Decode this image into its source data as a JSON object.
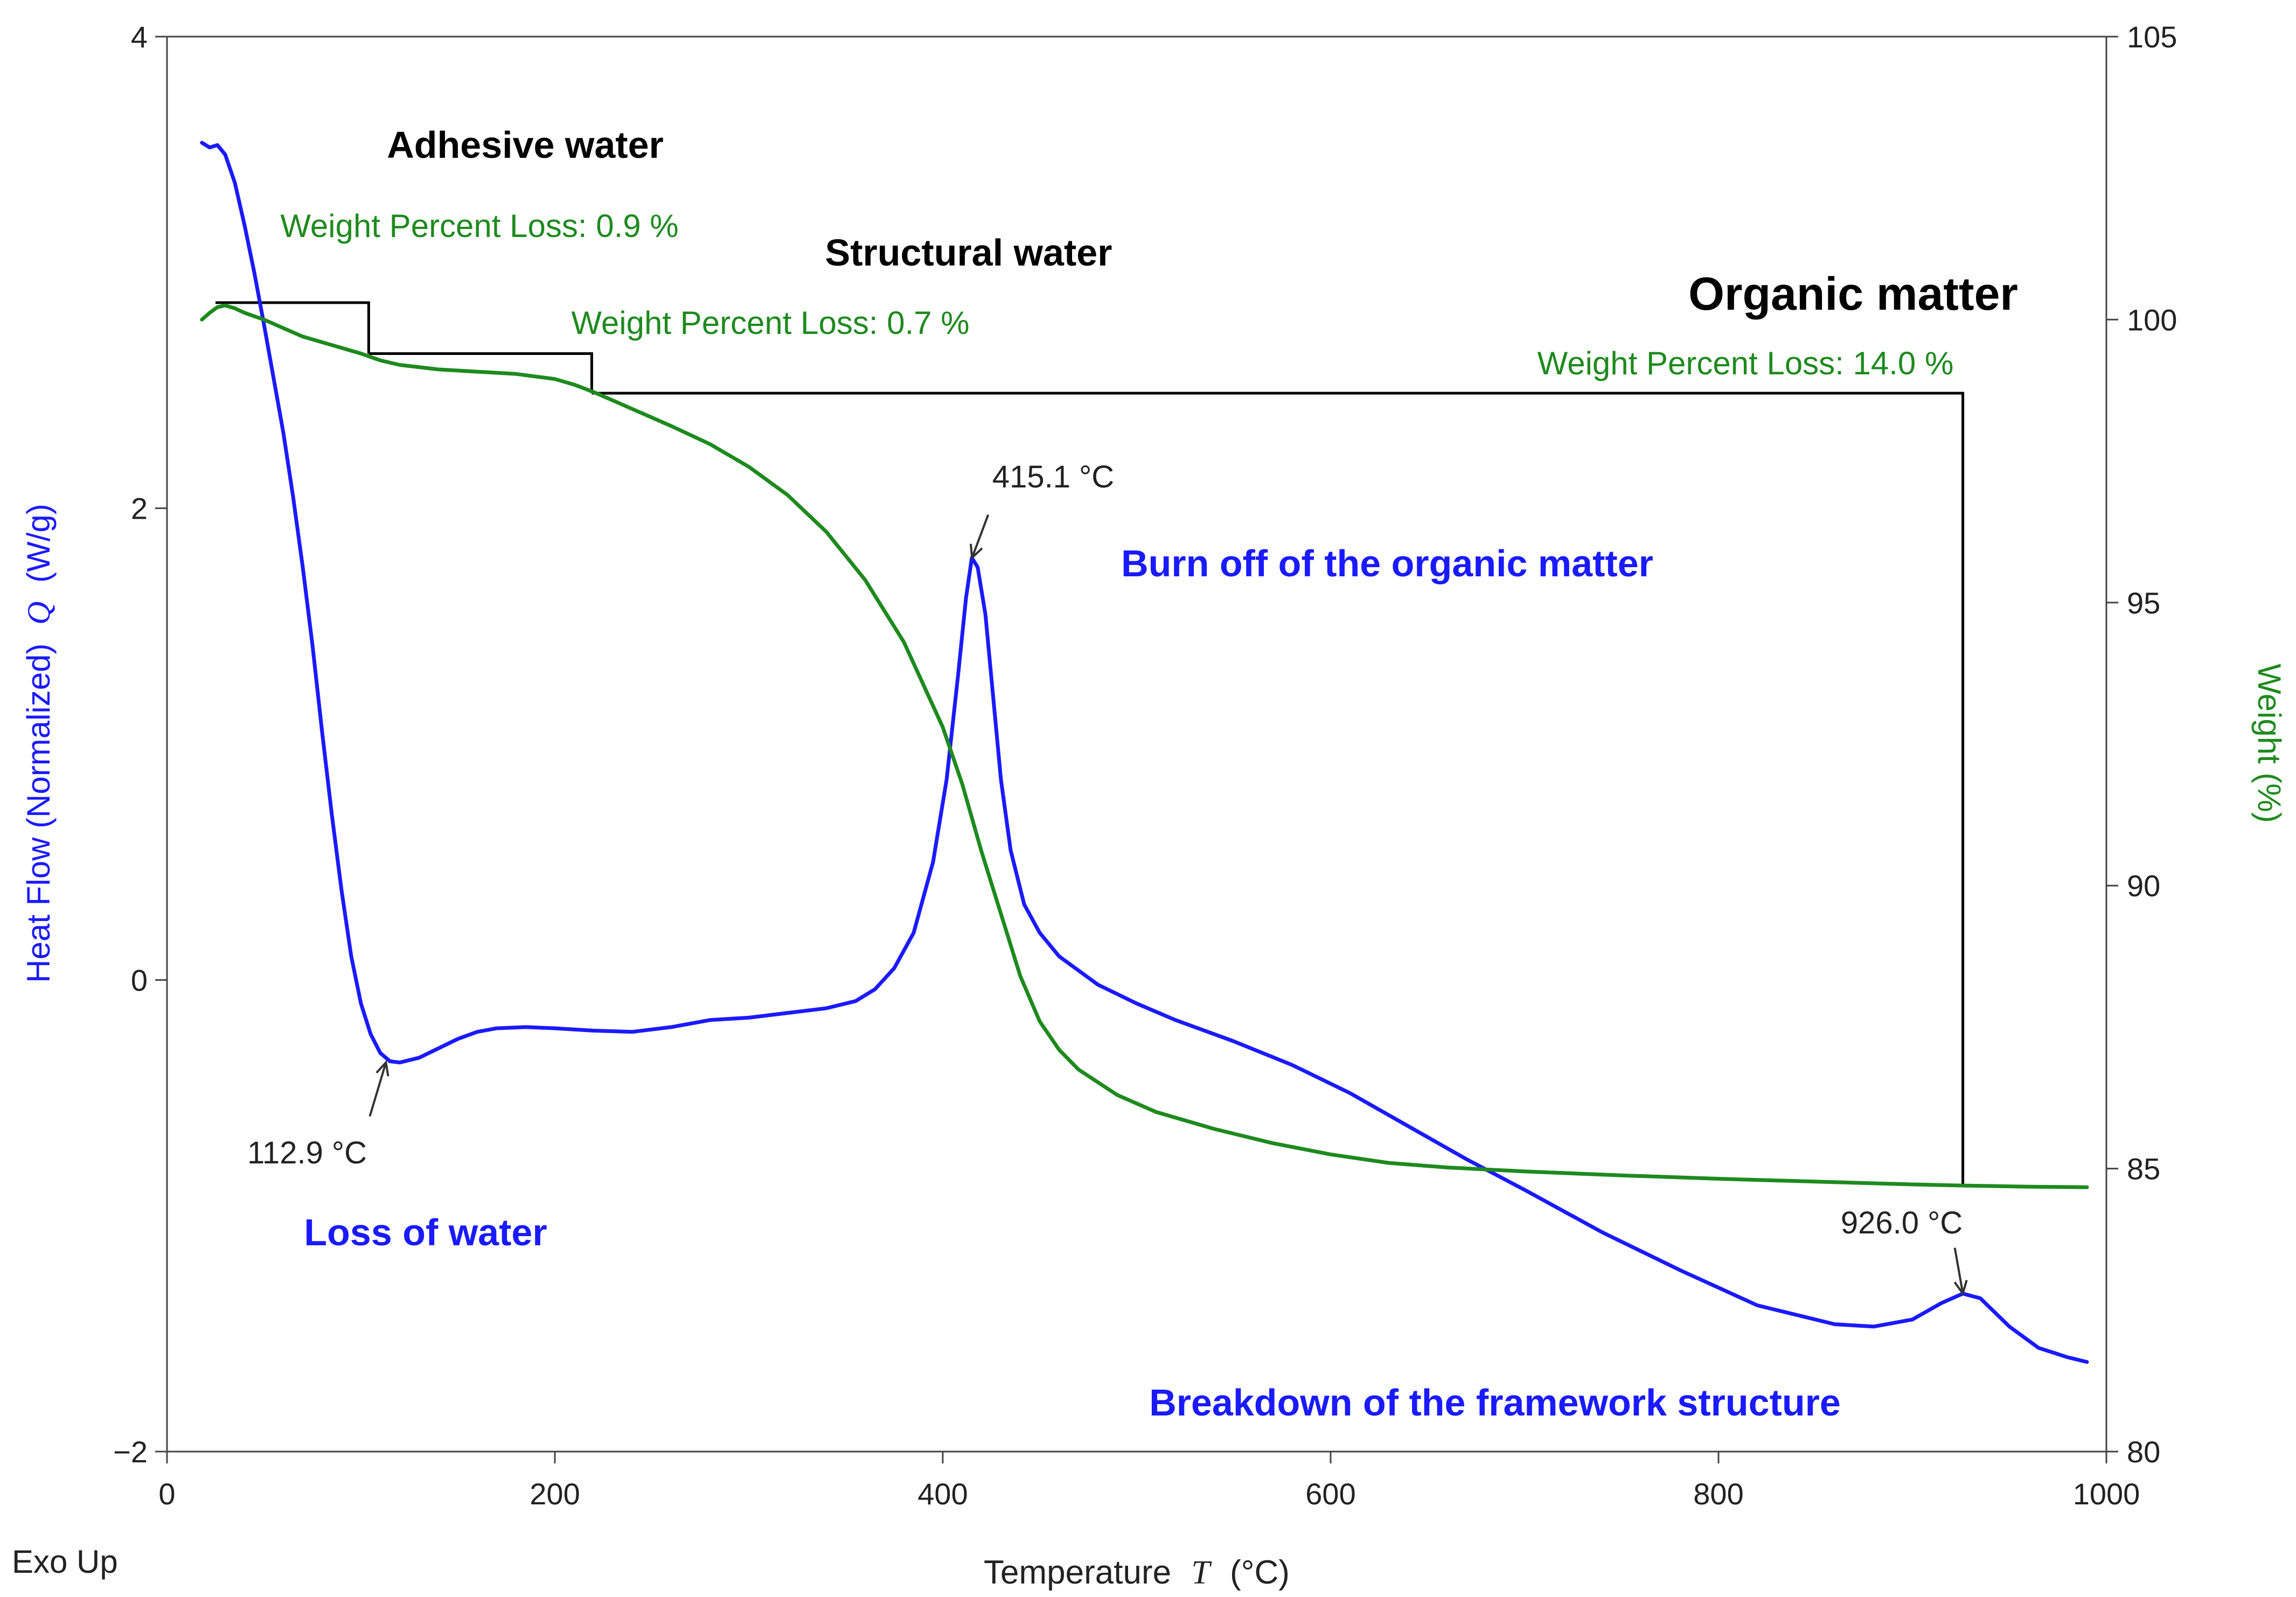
{
  "chart_data": {
    "type": "line",
    "x_axis": {
      "label_prefix": "Temperature",
      "label_symbol": "T",
      "label_unit": "(°C)",
      "range": [
        0,
        1000
      ],
      "ticks": [
        0,
        200,
        400,
        600,
        800,
        1000
      ],
      "tick_labels": [
        "0",
        "200",
        "400",
        "600",
        "800",
        "1000"
      ]
    },
    "y_axis_left": {
      "label_prefix": "Heat Flow (Normalized)",
      "label_symbol": "Q",
      "label_unit": "(W/g)",
      "range": [
        -2,
        4
      ],
      "ticks": [
        -2,
        0,
        2,
        4
      ],
      "tick_labels": [
        "−2",
        "0",
        "2",
        "4"
      ]
    },
    "y_axis_right": {
      "label": "Weight  (%)",
      "range": [
        80,
        105
      ],
      "ticks": [
        80,
        85,
        90,
        95,
        100,
        105
      ],
      "tick_labels": [
        "80",
        "85",
        "90",
        "95",
        "100",
        "105"
      ]
    },
    "corner_label": "Exo Up",
    "series": [
      {
        "name": "Heat Flow",
        "axis": "left",
        "color": "#1a1aff",
        "points": [
          [
            18,
            3.55
          ],
          [
            22,
            3.53
          ],
          [
            26,
            3.54
          ],
          [
            30,
            3.5
          ],
          [
            35,
            3.38
          ],
          [
            40,
            3.2
          ],
          [
            45,
            3.0
          ],
          [
            50,
            2.78
          ],
          [
            55,
            2.55
          ],
          [
            60,
            2.32
          ],
          [
            65,
            2.05
          ],
          [
            70,
            1.75
          ],
          [
            75,
            1.42
          ],
          [
            80,
            1.05
          ],
          [
            85,
            0.7
          ],
          [
            90,
            0.38
          ],
          [
            95,
            0.1
          ],
          [
            100,
            -0.1
          ],
          [
            105,
            -0.23
          ],
          [
            110,
            -0.31
          ],
          [
            115,
            -0.345
          ],
          [
            120,
            -0.35
          ],
          [
            130,
            -0.33
          ],
          [
            140,
            -0.29
          ],
          [
            150,
            -0.25
          ],
          [
            160,
            -0.22
          ],
          [
            170,
            -0.205
          ],
          [
            185,
            -0.2
          ],
          [
            200,
            -0.205
          ],
          [
            220,
            -0.215
          ],
          [
            240,
            -0.22
          ],
          [
            260,
            -0.2
          ],
          [
            280,
            -0.17
          ],
          [
            300,
            -0.16
          ],
          [
            320,
            -0.14
          ],
          [
            340,
            -0.12
          ],
          [
            355,
            -0.09
          ],
          [
            365,
            -0.04
          ],
          [
            375,
            0.05
          ],
          [
            385,
            0.2
          ],
          [
            395,
            0.5
          ],
          [
            402,
            0.85
          ],
          [
            408,
            1.3
          ],
          [
            412,
            1.62
          ],
          [
            415,
            1.79
          ],
          [
            418,
            1.75
          ],
          [
            422,
            1.55
          ],
          [
            426,
            1.2
          ],
          [
            430,
            0.85
          ],
          [
            435,
            0.55
          ],
          [
            442,
            0.32
          ],
          [
            450,
            0.2
          ],
          [
            460,
            0.1
          ],
          [
            480,
            -0.02
          ],
          [
            500,
            -0.1
          ],
          [
            520,
            -0.17
          ],
          [
            550,
            -0.26
          ],
          [
            580,
            -0.36
          ],
          [
            610,
            -0.48
          ],
          [
            640,
            -0.62
          ],
          [
            670,
            -0.76
          ],
          [
            700,
            -0.89
          ],
          [
            740,
            -1.07
          ],
          [
            780,
            -1.23
          ],
          [
            820,
            -1.38
          ],
          [
            860,
            -1.46
          ],
          [
            880,
            -1.47
          ],
          [
            900,
            -1.44
          ],
          [
            915,
            -1.37
          ],
          [
            926,
            -1.33
          ],
          [
            935,
            -1.35
          ],
          [
            950,
            -1.47
          ],
          [
            965,
            -1.56
          ],
          [
            980,
            -1.6
          ],
          [
            990,
            -1.62
          ]
        ]
      },
      {
        "name": "Weight",
        "axis": "right",
        "color": "#1e8a1e",
        "points": [
          [
            18,
            100.0
          ],
          [
            22,
            100.12
          ],
          [
            26,
            100.22
          ],
          [
            30,
            100.25
          ],
          [
            35,
            100.2
          ],
          [
            40,
            100.12
          ],
          [
            50,
            100.0
          ],
          [
            60,
            99.85
          ],
          [
            70,
            99.7
          ],
          [
            80,
            99.6
          ],
          [
            90,
            99.5
          ],
          [
            100,
            99.4
          ],
          [
            110,
            99.28
          ],
          [
            120,
            99.2
          ],
          [
            140,
            99.12
          ],
          [
            160,
            99.08
          ],
          [
            180,
            99.04
          ],
          [
            200,
            98.95
          ],
          [
            210,
            98.85
          ],
          [
            220,
            98.72
          ],
          [
            240,
            98.42
          ],
          [
            260,
            98.12
          ],
          [
            280,
            97.8
          ],
          [
            300,
            97.4
          ],
          [
            320,
            96.9
          ],
          [
            340,
            96.25
          ],
          [
            360,
            95.4
          ],
          [
            380,
            94.3
          ],
          [
            400,
            92.8
          ],
          [
            410,
            91.8
          ],
          [
            420,
            90.6
          ],
          [
            430,
            89.5
          ],
          [
            440,
            88.4
          ],
          [
            450,
            87.6
          ],
          [
            460,
            87.1
          ],
          [
            470,
            86.75
          ],
          [
            490,
            86.3
          ],
          [
            510,
            86.0
          ],
          [
            540,
            85.7
          ],
          [
            570,
            85.45
          ],
          [
            600,
            85.25
          ],
          [
            630,
            85.1
          ],
          [
            660,
            85.02
          ],
          [
            700,
            84.95
          ],
          [
            750,
            84.88
          ],
          [
            800,
            84.82
          ],
          [
            850,
            84.77
          ],
          [
            900,
            84.72
          ],
          [
            926,
            84.7
          ],
          [
            960,
            84.68
          ],
          [
            990,
            84.67
          ]
        ]
      }
    ],
    "peak_annotations": [
      {
        "label": "112.9 °C",
        "x": 112.9,
        "y": -0.35
      },
      {
        "label": "415.1 °C",
        "x": 415.1,
        "y": 1.79
      },
      {
        "label": "926.0 °C",
        "x": 926.0,
        "y": -1.33
      }
    ],
    "weight_loss_steps": [
      {
        "x_start": 25,
        "x_end": 104,
        "y_start": 100.3,
        "y_end": 99.4,
        "label": "Weight Percent Loss: 0.9 %"
      },
      {
        "x_start": 104,
        "x_end": 219,
        "y_start": 99.4,
        "y_end": 98.7,
        "label": "Weight Percent Loss: 0.7 %"
      },
      {
        "x_start": 219,
        "x_end": 926,
        "y_start": 98.7,
        "y_end": 84.7,
        "label": "Weight Percent Loss: 14.0 %"
      }
    ],
    "region_labels": [
      {
        "text": "Adhesive water",
        "color": "#000000"
      },
      {
        "text": "Structural water",
        "color": "#000000"
      },
      {
        "text": "Organic matter",
        "color": "#000000"
      },
      {
        "text": "Burn off of the organic matter",
        "color": "#1a1aff"
      },
      {
        "text": "Loss of water",
        "color": "#1a1aff"
      },
      {
        "text": "Breakdown of the framework structure",
        "color": "#1a1aff"
      }
    ],
    "grid": false
  }
}
